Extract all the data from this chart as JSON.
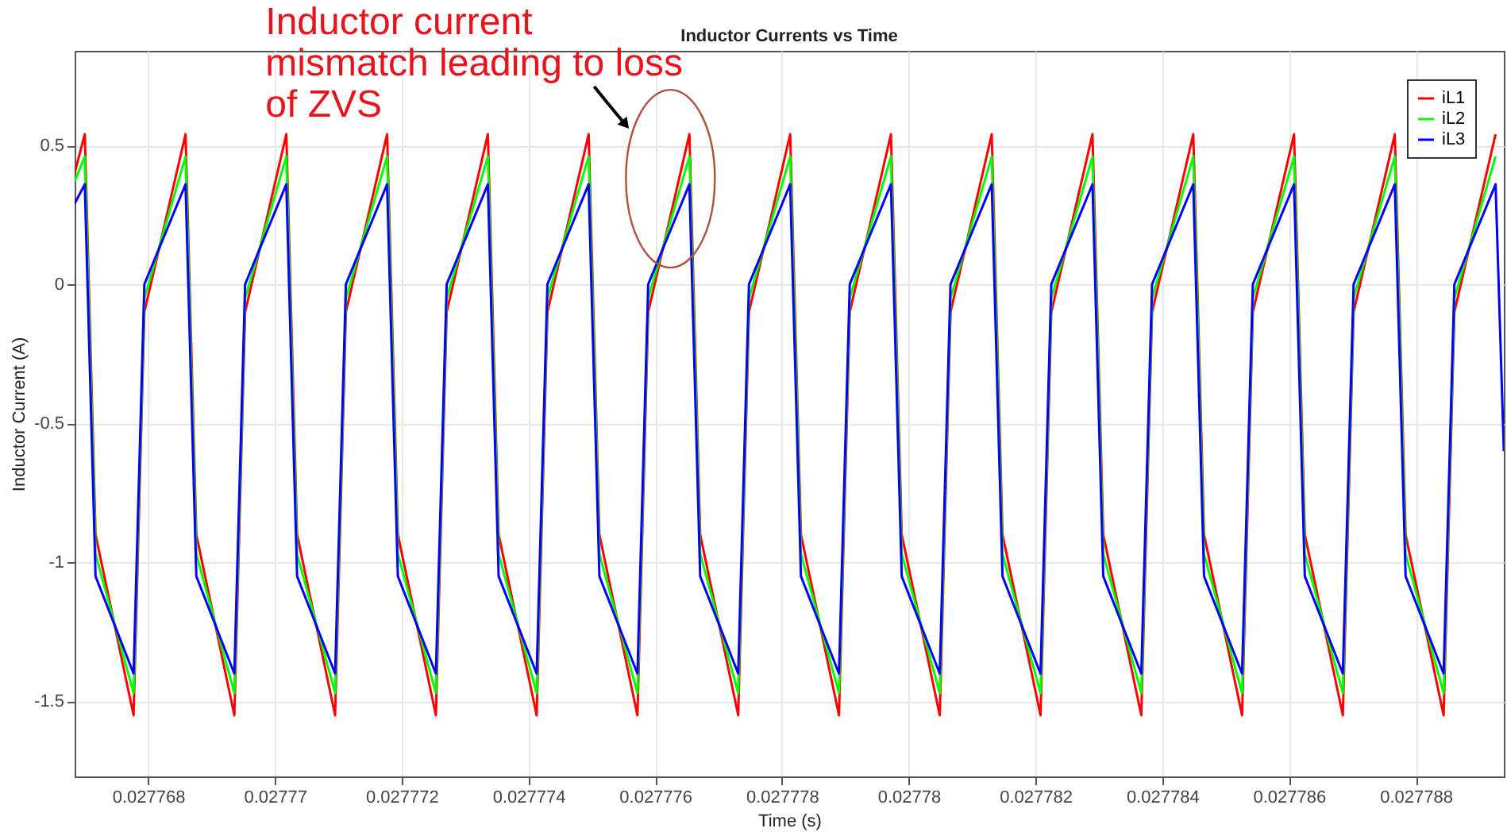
{
  "chart_data": {
    "type": "line",
    "title": "Inductor Currents vs Time",
    "xlabel": "Time (s)",
    "ylabel": "Inductor Current (A)",
    "annotations": [
      {
        "text": "Inductor current mismatch leading to loss of ZVS",
        "x": 0.02777624,
        "y": 0.38
      }
    ],
    "x": [
      0.02776684,
      0.027767,
      0.02776717,
      0.02776777,
      0.02776794,
      0.02776859,
      0.02776876,
      0.02776936,
      0.02776953,
      0.02777018,
      0.02777035,
      0.02777095,
      0.02777112,
      0.02777177,
      0.02777194,
      0.02777254,
      0.02777271,
      0.02777336,
      0.02777353,
      0.02777413,
      0.0277743,
      0.02777495,
      0.02777512,
      0.02777572,
      0.02777589,
      0.02777654,
      0.02777671,
      0.02777731,
      0.02777748,
      0.02777813,
      0.0277783,
      0.0277789,
      0.02777907,
      0.02777972,
      0.02777989,
      0.02778049,
      0.02778066,
      0.02778131,
      0.02778148,
      0.02778208,
      0.02778225,
      0.0277829,
      0.02778307,
      0.02778367,
      0.02778384,
      0.02778449,
      0.02778466,
      0.02778526,
      0.02778543,
      0.02778608,
      0.02778625,
      0.02778685,
      0.02778702,
      0.02778767,
      0.02778784,
      0.02778844,
      0.02778861,
      0.02778926,
      0.02778939
    ],
    "series": [
      {
        "name": "iL1",
        "color": "#ff0000",
        "values": [
          0.4,
          0.54,
          -0.9,
          -1.55,
          -0.1,
          0.54,
          -0.9,
          -1.55,
          -0.1,
          0.54,
          -0.9,
          -1.55,
          -0.1,
          0.54,
          -0.9,
          -1.55,
          -0.1,
          0.54,
          -0.9,
          -1.55,
          -0.1,
          0.54,
          -0.9,
          -1.55,
          -0.1,
          0.54,
          -0.9,
          -1.55,
          -0.1,
          0.54,
          -0.9,
          -1.55,
          -0.1,
          0.54,
          -0.9,
          -1.55,
          -0.1,
          0.54,
          -0.9,
          -1.55,
          -0.1,
          0.54,
          -0.9,
          -1.55,
          -0.1,
          0.54,
          -0.9,
          -1.55,
          -0.1,
          0.54,
          -0.9,
          -1.55,
          -0.1,
          0.54,
          -0.9,
          -1.55,
          -0.1,
          0.54,
          null
        ]
      },
      {
        "name": "iL2",
        "color": "#00ff00",
        "values": [
          0.37,
          0.46,
          -0.97,
          -1.47,
          -0.05,
          0.46,
          -0.97,
          -1.47,
          -0.05,
          0.46,
          -0.97,
          -1.47,
          -0.05,
          0.46,
          -0.97,
          -1.47,
          -0.05,
          0.46,
          -0.97,
          -1.47,
          -0.05,
          0.46,
          -0.97,
          -1.47,
          -0.05,
          0.46,
          -0.97,
          -1.47,
          -0.05,
          0.46,
          -0.97,
          -1.47,
          -0.05,
          0.46,
          -0.97,
          -1.47,
          -0.05,
          0.46,
          -0.97,
          -1.47,
          -0.05,
          0.46,
          -0.97,
          -1.47,
          -0.05,
          0.46,
          -0.97,
          -1.47,
          -0.05,
          0.46,
          -0.97,
          -1.47,
          -0.05,
          0.46,
          -0.97,
          -1.47,
          -0.05,
          0.46,
          null
        ]
      },
      {
        "name": "iL3",
        "color": "#0000ff",
        "values": [
          0.29,
          0.36,
          -1.05,
          -1.4,
          0,
          0.36,
          -1.05,
          -1.4,
          0,
          0.36,
          -1.05,
          -1.4,
          0,
          0.36,
          -1.05,
          -1.4,
          0,
          0.36,
          -1.05,
          -1.4,
          0,
          0.36,
          -1.05,
          -1.4,
          0,
          0.36,
          -1.05,
          -1.4,
          0,
          0.36,
          -1.05,
          -1.4,
          0,
          0.36,
          -1.05,
          -1.4,
          0,
          0.36,
          -1.05,
          -1.4,
          0,
          0.36,
          -1.05,
          -1.4,
          0,
          0.36,
          -1.05,
          -1.4,
          0,
          0.36,
          -1.05,
          -1.4,
          0,
          0.36,
          -1.05,
          -1.4,
          0,
          0.36,
          -0.6
        ]
      }
    ],
    "xlim": [
      0.02776684,
      0.02778939
    ],
    "xticks": [
      0.027768,
      0.02777,
      0.027772,
      0.027774,
      0.027776,
      0.027778,
      0.02778,
      0.027782,
      0.027784,
      0.027786,
      0.027788
    ],
    "ylim": [
      -1.77,
      0.84
    ],
    "yticks": [
      -1.5,
      -1,
      -0.5,
      0,
      0.5
    ],
    "grid": true,
    "legend": "top right",
    "line_style": "solid"
  }
}
